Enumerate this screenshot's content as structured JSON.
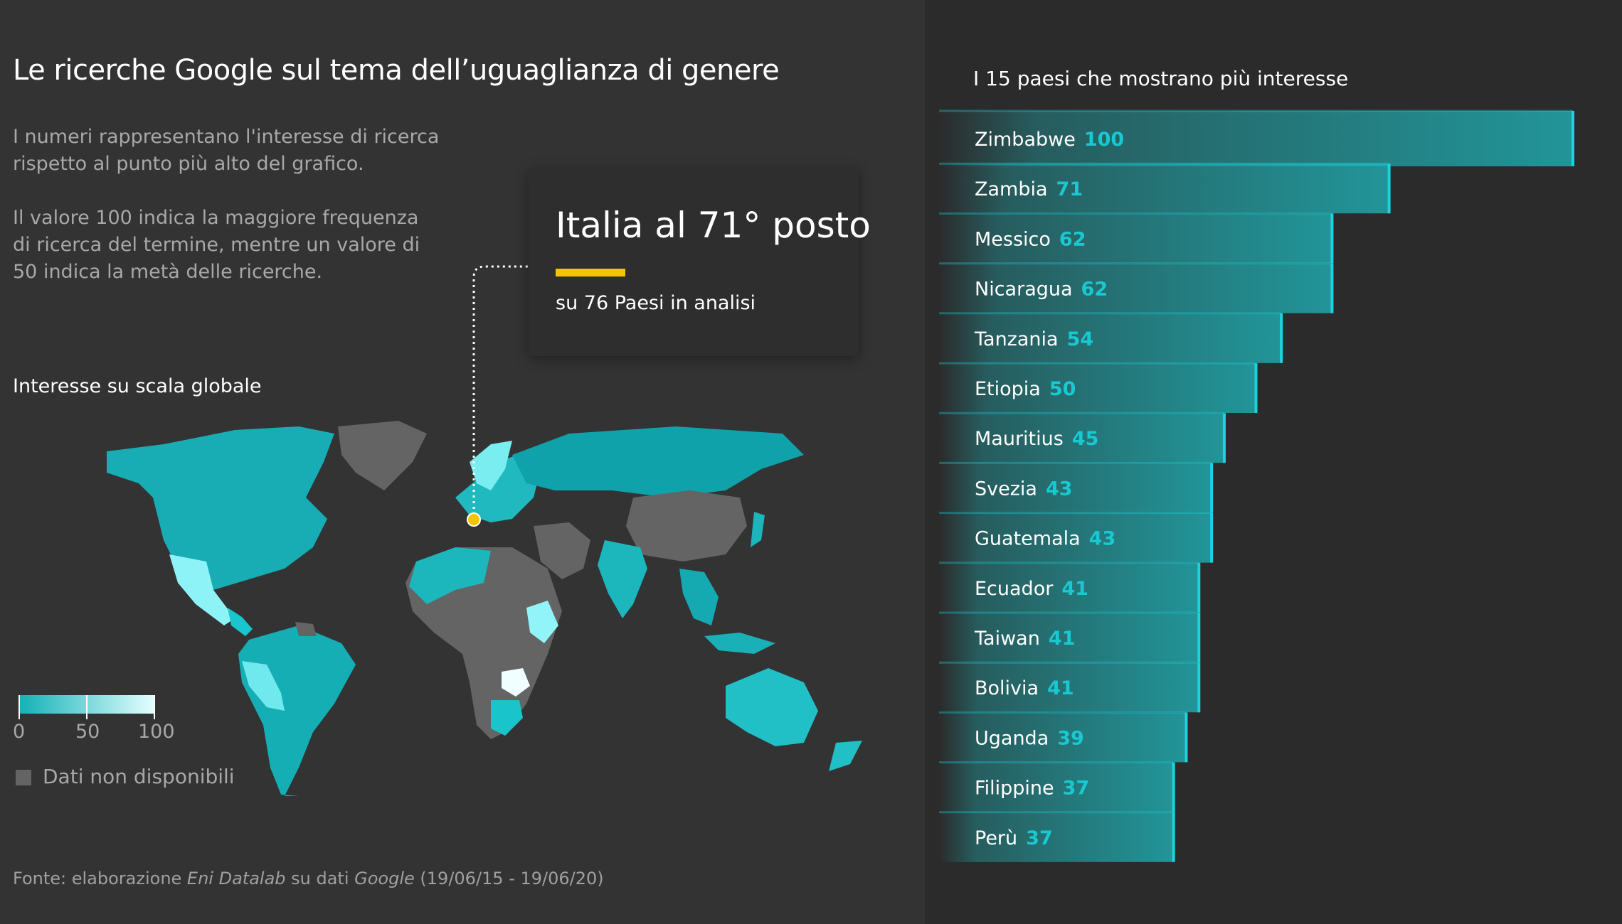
{
  "header": {
    "title": "Le ricerche Google sul tema dell’uguaglianza di genere",
    "desc1": "I numeri rappresentano l'interesse di ricerca rispetto al punto più alto del grafico.",
    "desc2": "Il valore 100 indica la maggiore frequenza di ricerca del termine, mentre un valore di 50 indica la metà delle ricerche."
  },
  "callout": {
    "headline": "Italia al 71° posto",
    "subtitle": "su 76 Paesi in analisi",
    "accent_color": "#f5c400",
    "marker_color": "#f5c400"
  },
  "map": {
    "title": "Interesse su scala globale",
    "legend": {
      "ticks": [
        "0",
        "50",
        "100"
      ],
      "no_data_label": "Dati non disponibili",
      "color_low": "#12b1b8",
      "color_high": "#e6ffff",
      "no_data_color": "#646464"
    }
  },
  "source": {
    "prefix": "Fonte: elaborazione ",
    "org": "Eni Datalab",
    "middle": " su dati ",
    "provider": "Google",
    "period": " (19/06/15 - 19/06/20)"
  },
  "chart_data": {
    "type": "bar",
    "title": "I 15 paesi che mostrano più interesse",
    "categories": [
      "Zimbabwe",
      "Zambia",
      "Messico",
      "Nicaragua",
      "Tanzania",
      "Etiopia",
      "Mauritius",
      "Svezia",
      "Guatemala",
      "Ecuador",
      "Taiwan",
      "Bolivia",
      "Uganda",
      "Filippine",
      "Perù"
    ],
    "values": [
      100,
      71,
      62,
      62,
      54,
      50,
      45,
      43,
      43,
      41,
      41,
      41,
      39,
      37,
      37
    ],
    "xlim": [
      0,
      100
    ],
    "orientation": "horizontal",
    "bar_color": "#1fb8bd",
    "value_color": "#19c9d1"
  }
}
